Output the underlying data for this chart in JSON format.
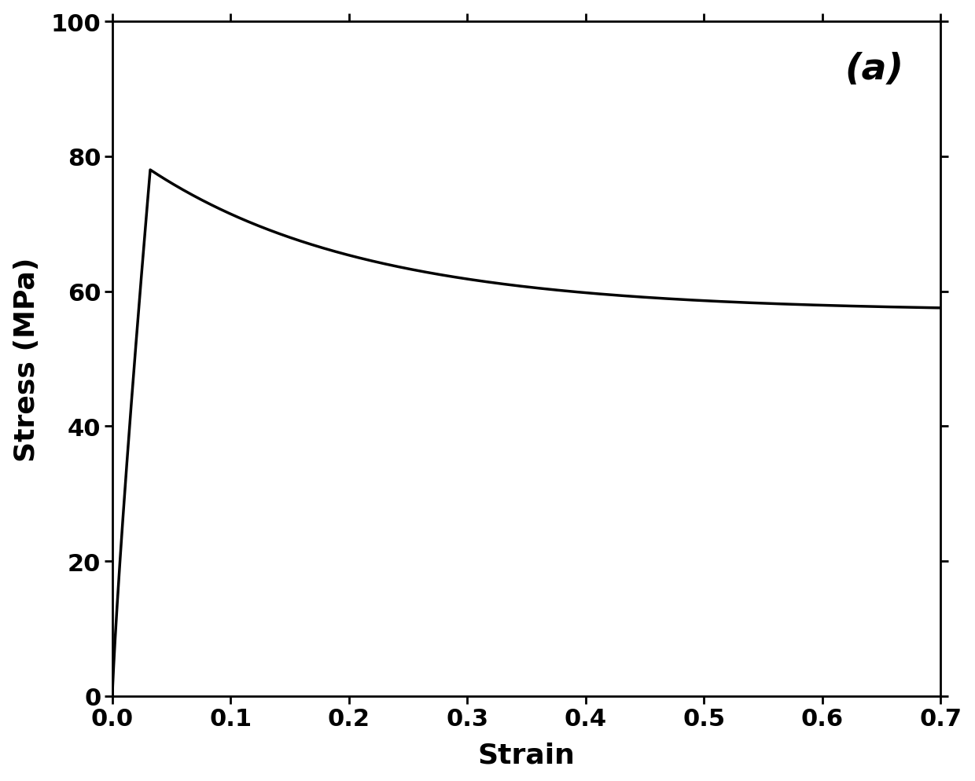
{
  "xlabel": "Strain",
  "ylabel": "Stress (MPa)",
  "annotation": "(a)",
  "xlim": [
    0,
    0.7
  ],
  "ylim": [
    0,
    100
  ],
  "xticks": [
    0.0,
    0.1,
    0.2,
    0.3,
    0.4,
    0.5,
    0.6,
    0.7
  ],
  "yticks": [
    0,
    20,
    40,
    60,
    80,
    100
  ],
  "line_color": "#000000",
  "line_width": 2.5,
  "background_color": "#ffffff",
  "xlabel_fontsize": 26,
  "ylabel_fontsize": 26,
  "tick_fontsize": 22,
  "annotation_fontsize": 34,
  "spine_linewidth": 2.0
}
